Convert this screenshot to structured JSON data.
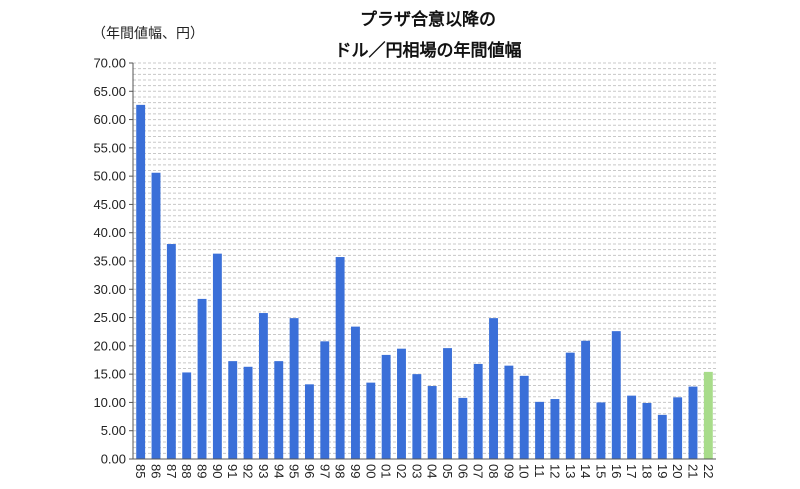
{
  "chart_data": {
    "type": "bar",
    "title_line1": "プラザ合意以降の",
    "title_line2": "ドル／円相場の年間値幅",
    "unit_label": "（年間値幅、円）",
    "xlabel": "",
    "ylabel": "",
    "ylim": [
      0,
      70
    ],
    "yticks": [
      "0.00",
      "5.00",
      "10.00",
      "15.00",
      "20.00",
      "25.00",
      "30.00",
      "35.00",
      "40.00",
      "45.00",
      "50.00",
      "55.00",
      "60.00",
      "65.00",
      "70.00"
    ],
    "categories": [
      "85",
      "86",
      "87",
      "88",
      "89",
      "90",
      "91",
      "92",
      "93",
      "94",
      "95",
      "96",
      "97",
      "98",
      "99",
      "00",
      "01",
      "02",
      "03",
      "04",
      "05",
      "06",
      "07",
      "08",
      "09",
      "10",
      "11",
      "12",
      "13",
      "14",
      "15",
      "16",
      "17",
      "18",
      "19",
      "20",
      "21",
      "22"
    ],
    "values": [
      62.6,
      50.6,
      38.0,
      15.3,
      28.3,
      36.3,
      17.3,
      16.3,
      25.8,
      17.3,
      24.9,
      13.2,
      20.8,
      35.7,
      23.4,
      13.5,
      18.4,
      19.5,
      15.0,
      12.9,
      19.6,
      10.8,
      16.8,
      24.9,
      16.5,
      14.7,
      10.1,
      10.6,
      18.8,
      20.9,
      10.0,
      22.6,
      11.2,
      9.9,
      7.8,
      10.9,
      12.8,
      15.4
    ],
    "grid": true,
    "bar_color": "#3a6fd8",
    "highlight_color": "#a8dc8a",
    "highlight_index": 37,
    "grid_color": "#c8c8c8"
  }
}
